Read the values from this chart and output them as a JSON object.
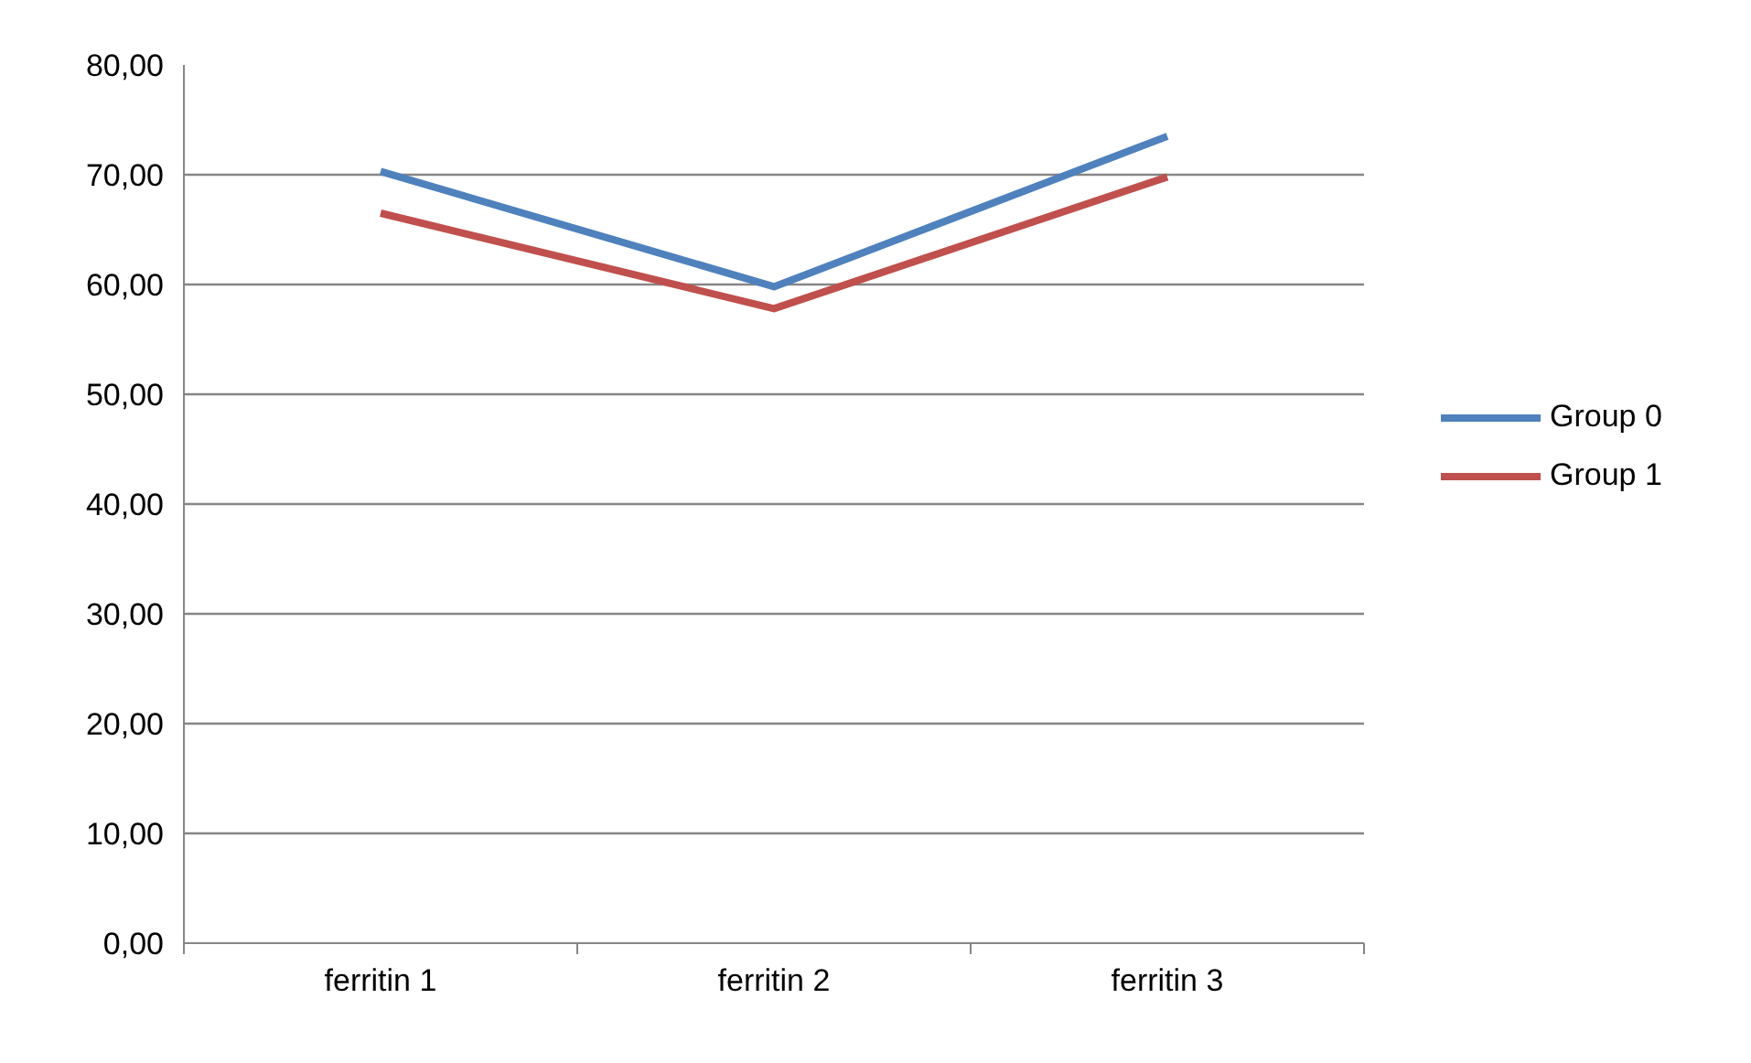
{
  "chart_data": {
    "type": "line",
    "categories": [
      "ferritin 1",
      "ferritin 2",
      "ferritin 3"
    ],
    "series": [
      {
        "name": "Group 0",
        "color": "#4f81bd",
        "values": [
          70.3,
          59.8,
          73.5
        ]
      },
      {
        "name": "Group 1",
        "color": "#c0504d",
        "values": [
          66.5,
          57.8,
          69.8
        ]
      }
    ],
    "ylim": [
      0,
      80
    ],
    "yticks": [
      {
        "value": 0,
        "label": "0,00"
      },
      {
        "value": 10,
        "label": "10,00"
      },
      {
        "value": 20,
        "label": "20,00"
      },
      {
        "value": 30,
        "label": "30,00"
      },
      {
        "value": 40,
        "label": "40,00"
      },
      {
        "value": 50,
        "label": "50,00"
      },
      {
        "value": 60,
        "label": "60,00"
      },
      {
        "value": 70,
        "label": "70,00"
      },
      {
        "value": 80,
        "label": "80,00"
      }
    ],
    "grid": "y",
    "legend": "right",
    "marker": "none",
    "line_style": "solid"
  }
}
